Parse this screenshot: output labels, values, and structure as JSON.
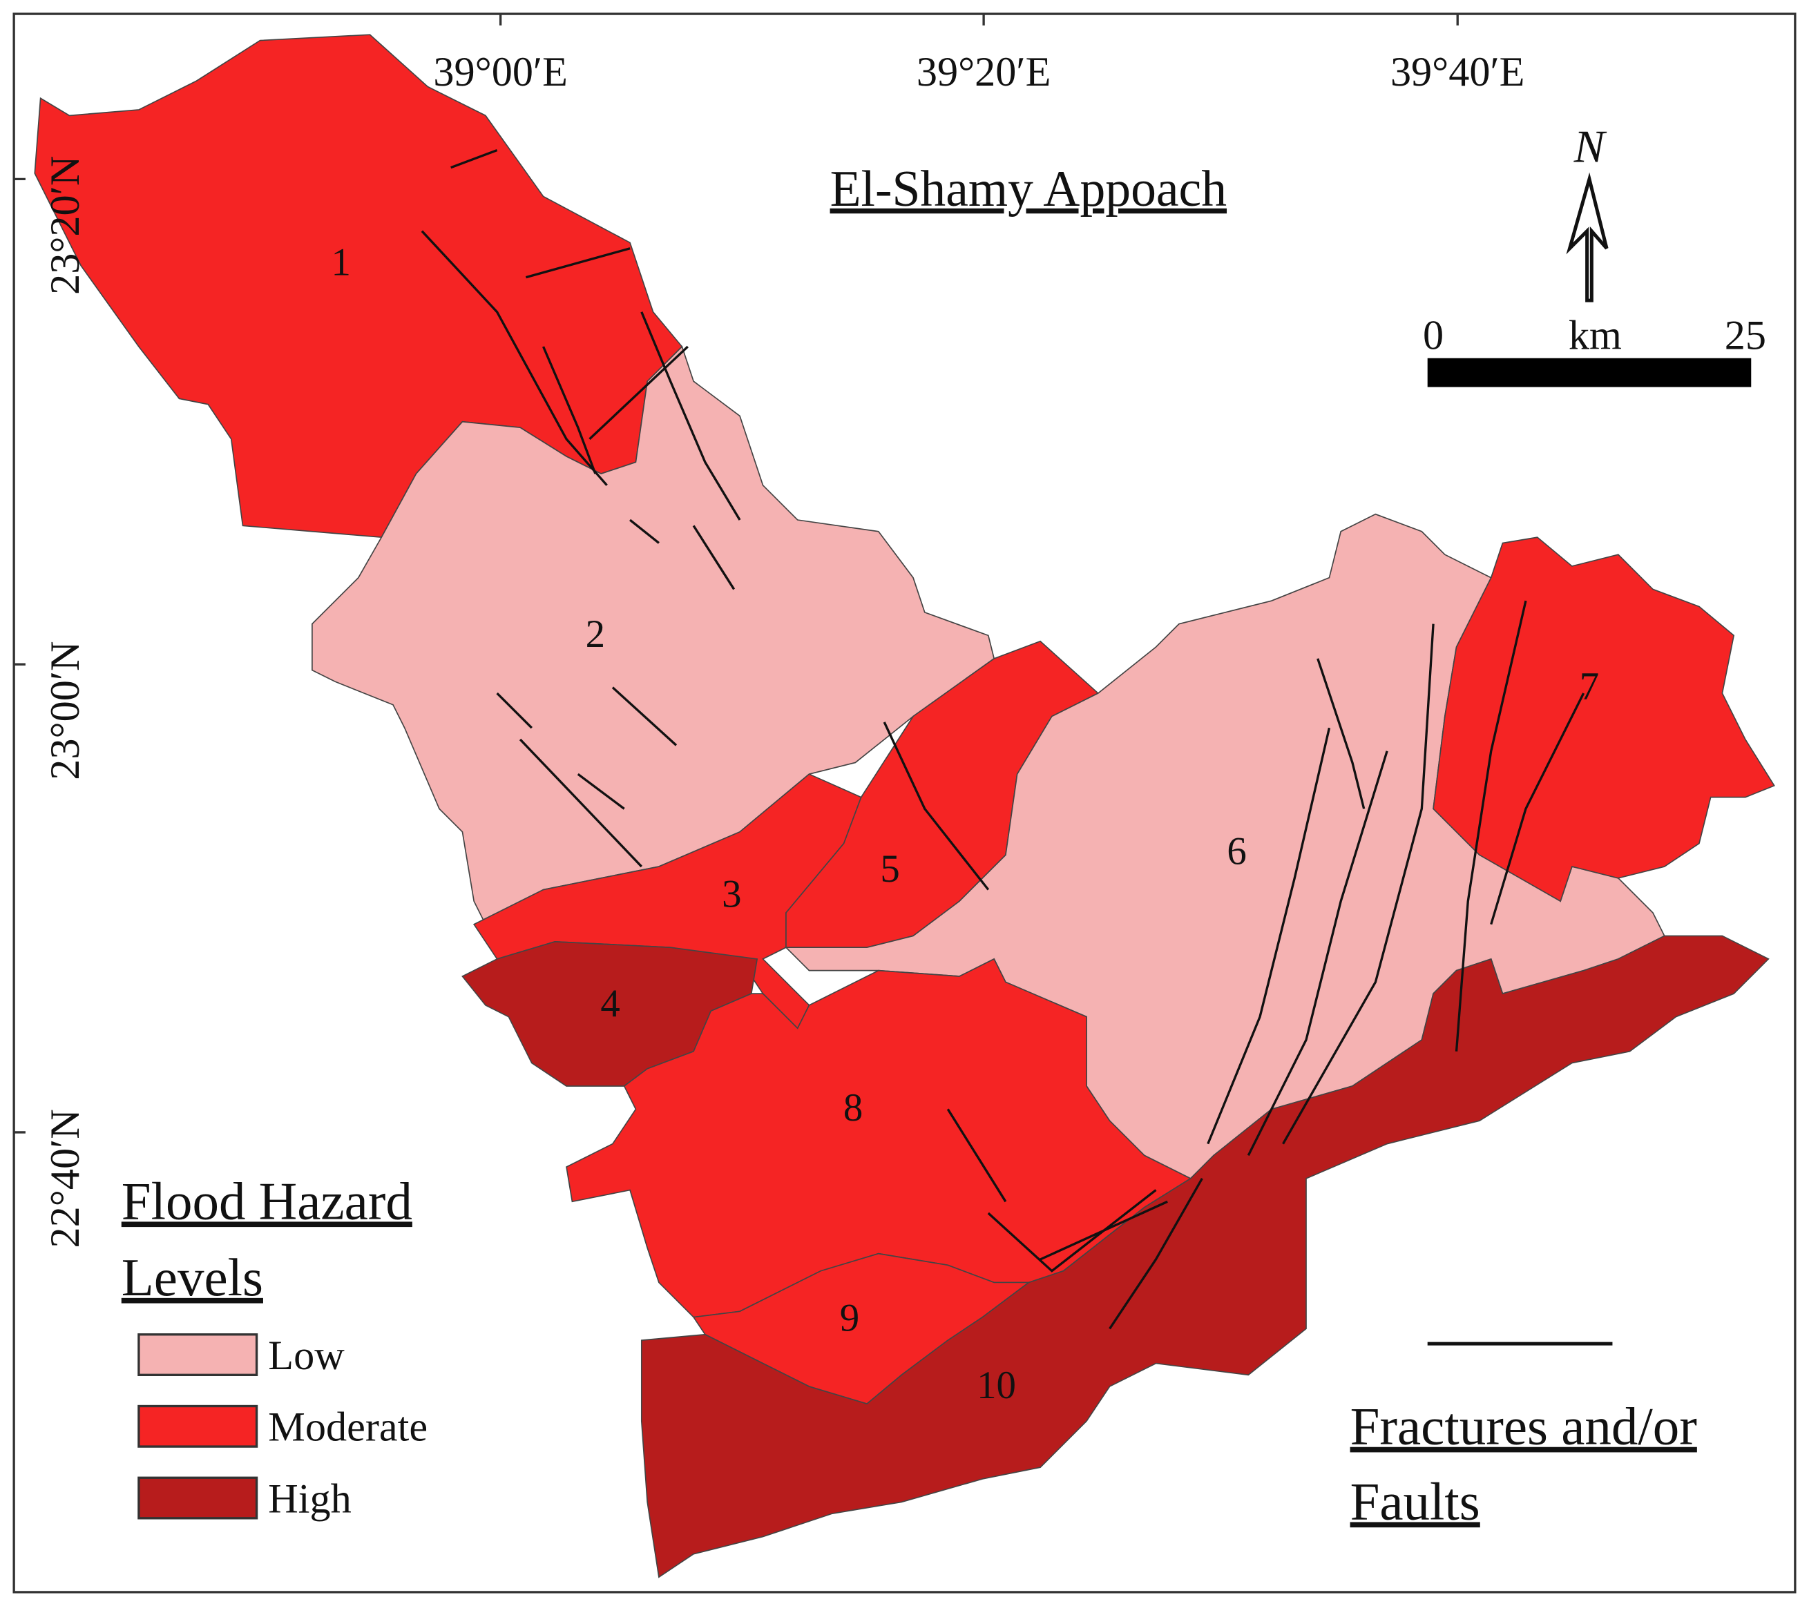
{
  "map": {
    "title": "El-Shamy Appoach",
    "longitude_labels": [
      "39°00′E",
      "39°20′E",
      "39°40′E"
    ],
    "latitude_labels": [
      "23°20′N",
      "23°00′N",
      "22°40′N"
    ],
    "north": "N",
    "scale_bar": {
      "start": 0,
      "unit": "km",
      "end": 25
    },
    "legend": {
      "title_lines": [
        "Flood Hazard",
        "Levels"
      ],
      "items": [
        {
          "label": "Low",
          "color": "#f5b2b2"
        },
        {
          "label": "Moderate",
          "color": "#f52424"
        },
        {
          "label": "High",
          "color": "#b71c1c"
        }
      ],
      "line_label_lines": [
        "Fractures and/or",
        "Faults"
      ]
    },
    "basins": [
      {
        "label": "1",
        "color": "#f52424"
      },
      {
        "label": "2",
        "color": "#f5b2b2"
      },
      {
        "label": "3",
        "color": "#f52424"
      },
      {
        "label": "4",
        "color": "#b71c1c"
      },
      {
        "label": "5",
        "color": "#f52424"
      },
      {
        "label": "6",
        "color": "#f5b2b2"
      },
      {
        "label": "7",
        "color": "#f52424"
      },
      {
        "label": "8",
        "color": "#f52424"
      },
      {
        "label": "9",
        "color": "#f52424"
      },
      {
        "label": "10",
        "color": "#b71c1c"
      }
    ]
  }
}
